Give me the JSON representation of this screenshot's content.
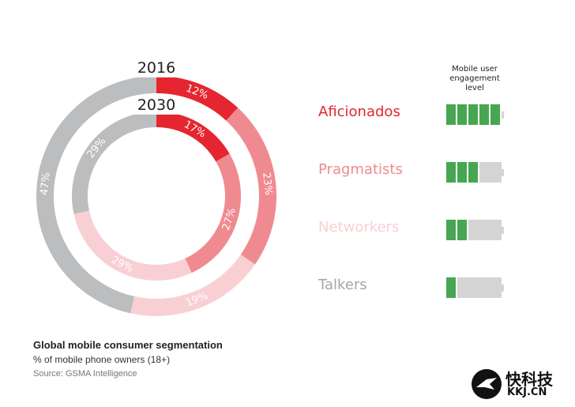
{
  "chart_data": {
    "type": "donut",
    "title": "Global mobile consumer segmentation",
    "subtitle": "% of mobile phone owners (18+)",
    "source": "Source: GSMA Intelligence",
    "categories": [
      "Aficionados",
      "Pragmatists",
      "Networkers",
      "Talkers"
    ],
    "category_colors": [
      "#e52630",
      "#f08a91",
      "#f8d0d4",
      "#bcbdbf"
    ],
    "category_text_colors": [
      "#e52630",
      "#f08a91",
      "#f8d0d4",
      "#a6a6a6"
    ],
    "series": [
      {
        "name": "2016",
        "values": [
          12,
          23,
          19,
          47
        ],
        "labels": [
          "12%",
          "23%",
          "19%",
          "47%"
        ]
      },
      {
        "name": "2030",
        "values": [
          17,
          27,
          29,
          29
        ],
        "labels": [
          "17%",
          "27%",
          "29%",
          "29%"
        ]
      }
    ],
    "engagement": {
      "header": "Mobile user engagement level",
      "max_level": 5,
      "levels": [
        5,
        3,
        2,
        1
      ]
    }
  },
  "logo": {
    "cn": "快科技",
    "en": "KKJ.CN"
  }
}
